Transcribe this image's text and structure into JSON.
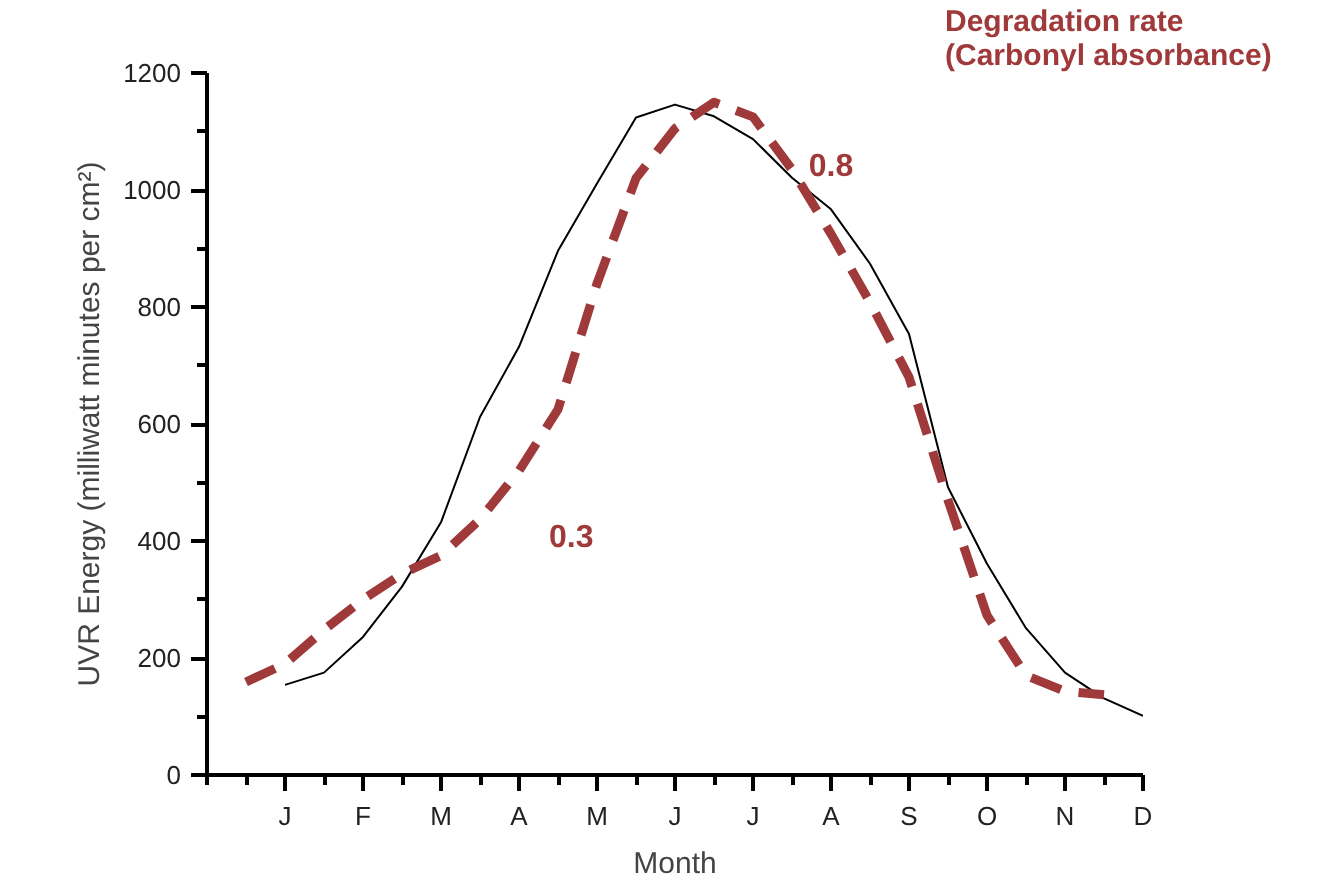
{
  "chart_data": {
    "type": "line",
    "xlabel": "Month",
    "ylabel": "UVR Energy (milliwatt minutes per cm²)",
    "categories": [
      null,
      null,
      "J",
      null,
      "F",
      null,
      "M",
      null,
      "A",
      null,
      "M",
      null,
      "J",
      null,
      "J",
      null,
      "A",
      null,
      "S",
      null,
      "O",
      null,
      "N",
      null,
      "D"
    ],
    "ylim": [
      0,
      1200
    ],
    "yticks": [
      0,
      {
        "value": 100,
        "label": null
      },
      200,
      {
        "value": 300,
        "label": null
      },
      400,
      {
        "value": 500,
        "label": null
      },
      600,
      {
        "value": 700,
        "label": null
      },
      800,
      {
        "value": 900,
        "label": null
      },
      1000,
      {
        "value": 1100,
        "label": null
      },
      1200
    ],
    "grid": false,
    "series": [
      {
        "color": "#000000",
        "line_style": "solid",
        "values": [
          null,
          null,
          154,
          175,
          236,
          322,
          432,
          612,
          732,
          896,
          1011,
          1124,
          1146,
          1126,
          1087,
          1021,
          967,
          874,
          754,
          492,
          361,
          251,
          175,
          131,
          101
        ]
      },
      {
        "name": "Degradation rate\n(Carbonyl absorbance)",
        "color": "#a0393a",
        "line_style": "dashed",
        "values": [
          null,
          159,
          190,
          248,
          300,
          344,
          375,
          437,
          520,
          625,
          840,
          1020,
          1105,
          1150,
          1125,
          1035,
          925,
          808,
          680,
          470,
          273,
          170,
          143,
          137,
          null
        ]
      }
    ],
    "annotations": [
      "0.3",
      "0.8"
    ]
  }
}
